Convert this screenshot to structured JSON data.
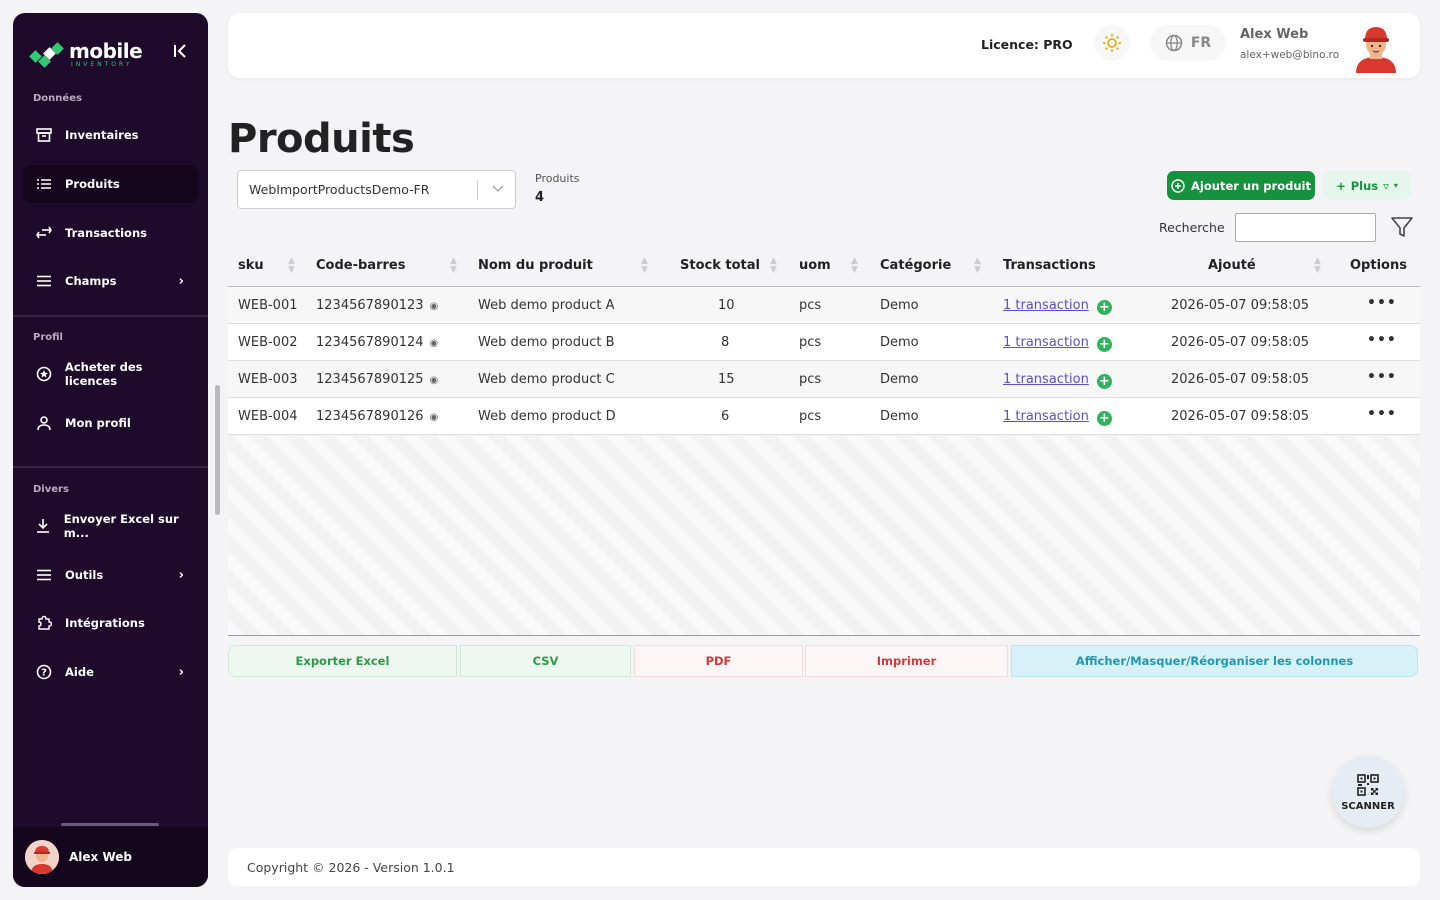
{
  "sidebar": {
    "logo_text": "mobile",
    "logo_sub": "INVENTORY",
    "sections": {
      "data": "Données",
      "profile": "Profil",
      "misc": "Divers"
    },
    "items": [
      {
        "label": "Inventaires",
        "icon": "archive-icon"
      },
      {
        "label": "Produits",
        "icon": "list-icon"
      },
      {
        "label": "Transactions",
        "icon": "transfer-icon"
      },
      {
        "label": "Champs",
        "icon": "menu-icon"
      },
      {
        "label": "Acheter des licences",
        "icon": "badge-icon"
      },
      {
        "label": "Mon profil",
        "icon": "user-icon"
      },
      {
        "label": "Envoyer Excel sur m...",
        "icon": "download-icon"
      },
      {
        "label": "Outils",
        "icon": "menu-icon"
      },
      {
        "label": "Intégrations",
        "icon": "puzzle-icon"
      },
      {
        "label": "Aide",
        "icon": "help-icon"
      }
    ],
    "active_item": "Produits",
    "user_name": "Alex Web"
  },
  "header": {
    "licence": "Licence: PRO",
    "language": "FR",
    "user_name": "Alex Web",
    "user_email": "alex+web@bino.ro"
  },
  "main": {
    "title": "Produits",
    "inventory_select": "WebImportProductsDemo-FR",
    "count_label": "Produits",
    "count_value": "4",
    "add_button": "Ajouter un produit",
    "more_button": "Plus",
    "search_label": "Recherche",
    "search_value": ""
  },
  "table": {
    "columns": [
      "sku",
      "Code-barres",
      "Nom du produit",
      "Stock total",
      "uom",
      "Catégorie",
      "Transactions",
      "Ajouté",
      "Options"
    ],
    "rows": [
      {
        "sku": "WEB-001",
        "barcode": "1234567890123",
        "name": "Web demo product A",
        "stock": "10",
        "uom": "pcs",
        "category": "Demo",
        "transactions": "1 transaction",
        "added": "2026-05-07 09:58:05"
      },
      {
        "sku": "WEB-002",
        "barcode": "1234567890124",
        "name": "Web demo product B",
        "stock": "8",
        "uom": "pcs",
        "category": "Demo",
        "transactions": "1 transaction",
        "added": "2026-05-07 09:58:05"
      },
      {
        "sku": "WEB-003",
        "barcode": "1234567890125",
        "name": "Web demo product C",
        "stock": "15",
        "uom": "pcs",
        "category": "Demo",
        "transactions": "1 transaction",
        "added": "2026-05-07 09:58:05"
      },
      {
        "sku": "WEB-004",
        "barcode": "1234567890126",
        "name": "Web demo product D",
        "stock": "6",
        "uom": "pcs",
        "category": "Demo",
        "transactions": "1 transaction",
        "added": "2026-05-07 09:58:05"
      }
    ]
  },
  "export": {
    "excel": "Exporter Excel",
    "csv": "CSV",
    "pdf": "PDF",
    "print": "Imprimer",
    "columns": "Afficher/Masquer/Réorganiser les colonnes"
  },
  "scanner_label": "SCANNER",
  "footer": "Copyright © 2026 - Version 1.0.1",
  "colors": {
    "sidebar_bg": "#1e0a2a",
    "primary_green": "#16923f",
    "link_purple": "#5a4fcf",
    "danger_red": "#d23a3a",
    "info_cyan": "#1f97b3"
  }
}
